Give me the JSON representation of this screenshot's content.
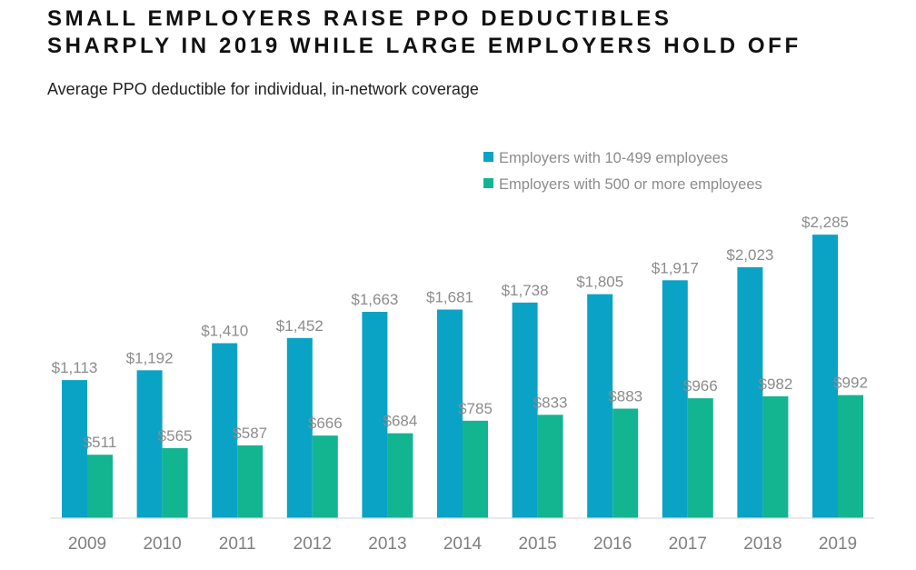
{
  "title_lines": [
    "SMALL EMPLOYERS RAISE PPO DEDUCTIBLES",
    "SHARPLY IN 2019 WHILE LARGE EMPLOYERS HOLD OFF"
  ],
  "subtitle": "Average PPO deductible for individual, in-network coverage",
  "chart_data": {
    "type": "bar",
    "title": "SMALL EMPLOYERS RAISE PPO DEDUCTIBLES SHARPLY IN 2019 WHILE LARGE EMPLOYERS HOLD OFF",
    "subtitle": "Average PPO deductible for individual, in-network coverage",
    "xlabel": "",
    "ylabel": "",
    "ylim": [
      0,
      2500
    ],
    "grid": false,
    "legend_position": "top-right",
    "categories": [
      "2009",
      "2010",
      "2011",
      "2012",
      "2013",
      "2014",
      "2015",
      "2016",
      "2017",
      "2018",
      "2019"
    ],
    "series": [
      {
        "name": "Employers with 10-499 employees",
        "color": "#0aa3c6",
        "values": [
          1113,
          1192,
          1410,
          1452,
          1663,
          1681,
          1738,
          1805,
          1917,
          2023,
          2285
        ],
        "labels": [
          "$1,113",
          "$1,192",
          "$1,410",
          "$1,452",
          "$1,663",
          "$1,681",
          "$1,738",
          "$1,805",
          "$1,917",
          "$2,023",
          "$2,285"
        ]
      },
      {
        "name": "Employers with 500 or more employees",
        "color": "#13b591",
        "values": [
          511,
          565,
          587,
          666,
          684,
          785,
          833,
          883,
          966,
          982,
          992
        ],
        "labels": [
          "$511",
          "$565",
          "$587",
          "$666",
          "$684",
          "$785",
          "$833",
          "$883",
          "$966",
          "$982",
          "$992"
        ]
      }
    ]
  }
}
